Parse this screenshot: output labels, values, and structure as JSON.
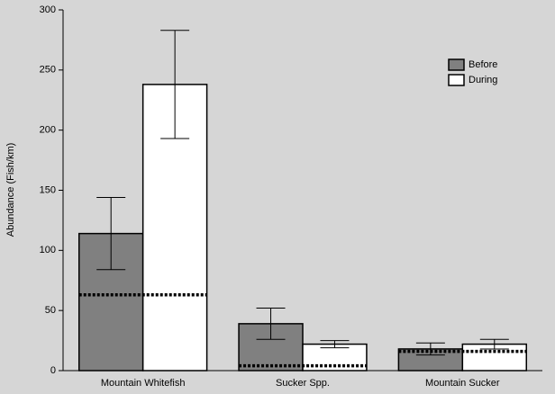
{
  "chart_data": {
    "type": "bar",
    "y_label": "Abundance (Fish/km)",
    "categories": [
      "Mountain Whitefish",
      "Sucker Spp.",
      "Mountain Sucker"
    ],
    "series": [
      {
        "name": "Before",
        "color": "#808080",
        "values": [
          114,
          39,
          18
        ],
        "errors": [
          30,
          13,
          5
        ]
      },
      {
        "name": "During",
        "color": "#ffffff",
        "values": [
          238,
          22,
          22
        ],
        "errors": [
          45,
          3,
          4
        ]
      }
    ],
    "dotted_lines": [
      63,
      4,
      16
    ],
    "ylim": [
      0,
      300
    ],
    "yticks": [
      0,
      50,
      100,
      150,
      200,
      250,
      300
    ],
    "legend": "upper-right"
  }
}
